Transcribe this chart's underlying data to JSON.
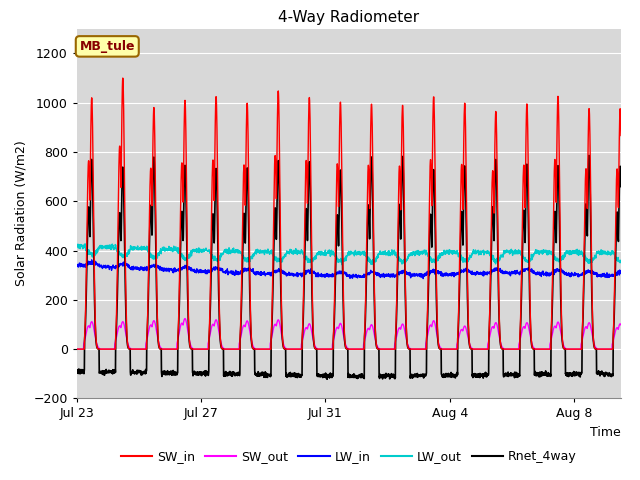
{
  "title": "4-Way Radiometer",
  "xlabel": "Time",
  "ylabel": "Solar Radiation (W/m2)",
  "ylim": [
    -200,
    1300
  ],
  "yticks": [
    -200,
    0,
    200,
    400,
    600,
    800,
    1000,
    1200
  ],
  "x_tick_labels": [
    "Jul 23",
    "Jul 27",
    "Jul 31",
    "Aug 4",
    "Aug 8"
  ],
  "x_tick_positions": [
    0,
    4,
    8,
    12,
    16
  ],
  "background_color": "#ffffff",
  "plot_bg_color": "#d8d8d8",
  "grid_color": "#ffffff",
  "title_fontsize": 11,
  "label_fontsize": 9,
  "tick_fontsize": 9,
  "legend_entries": [
    "SW_in",
    "SW_out",
    "LW_in",
    "LW_out",
    "Rnet_4way"
  ],
  "legend_colors": [
    "#ff0000",
    "#ff00ff",
    "#0000ff",
    "#00cccc",
    "#000000"
  ],
  "station_label": "MB_tule",
  "station_label_color": "#880000",
  "station_label_bg": "#ffffaa",
  "station_label_edge": "#996600",
  "n_days": 18,
  "xlim_end": 17.5
}
